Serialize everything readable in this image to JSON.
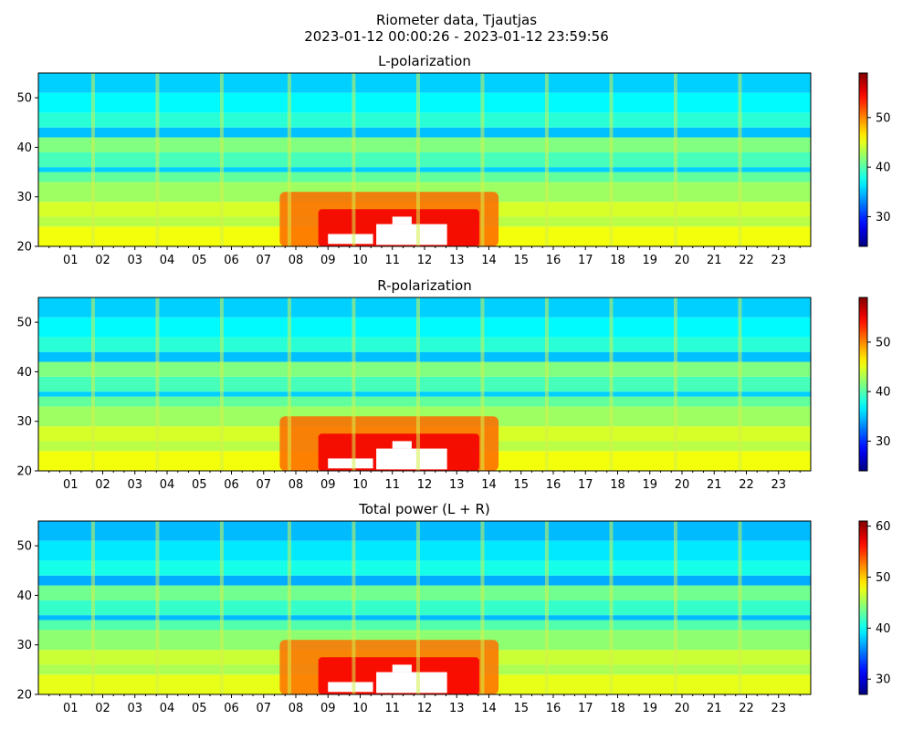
{
  "figure": {
    "title_line1": "Riometer data, Tjautjas",
    "title_line2": "2023-01-12 00:00:26 - 2023-01-12 23:59:56"
  },
  "chart_data": [
    {
      "type": "heatmap",
      "title": "L-polarization",
      "xlabel": "",
      "ylabel": "",
      "xlim": [
        0,
        24
      ],
      "ylim": [
        20,
        55
      ],
      "x_ticks": [
        "01",
        "02",
        "03",
        "04",
        "05",
        "06",
        "07",
        "08",
        "09",
        "10",
        "11",
        "12",
        "13",
        "14",
        "15",
        "16",
        "17",
        "18",
        "19",
        "20",
        "21",
        "22",
        "23"
      ],
      "y_ticks": [
        20,
        30,
        40,
        50
      ],
      "colormap": "jet",
      "colorbar": {
        "range": [
          24,
          59
        ],
        "ticks": [
          30,
          40,
          50
        ]
      },
      "interference_hours": [
        1.7,
        3.7,
        5.7,
        7.8,
        9.8,
        11.8,
        13.8,
        15.8,
        17.8,
        19.8,
        21.8
      ],
      "bands": [
        {
          "y0": 20,
          "y1": 24,
          "value": 45.5
        },
        {
          "y0": 24,
          "y1": 26,
          "value": 43.5
        },
        {
          "y0": 26,
          "y1": 29,
          "value": 44.5
        },
        {
          "y0": 29,
          "y1": 33,
          "value": 42.5
        },
        {
          "y0": 33,
          "y1": 35,
          "value": 40.5
        },
        {
          "y0": 35,
          "y1": 36,
          "value": 35.5
        },
        {
          "y0": 36,
          "y1": 39,
          "value": 39.5
        },
        {
          "y0": 39,
          "y1": 42,
          "value": 41.5
        },
        {
          "y0": 42,
          "y1": 44,
          "value": 35
        },
        {
          "y0": 44,
          "y1": 47,
          "value": 38.5
        },
        {
          "y0": 47,
          "y1": 51,
          "value": 37
        },
        {
          "y0": 51,
          "y1": 55,
          "value": 35.5
        }
      ],
      "enhancement": {
        "t0": 7.5,
        "t1": 14.3,
        "y0": 20,
        "y1": 31,
        "value": 51
      }
    },
    {
      "type": "heatmap",
      "title": "R-polarization",
      "xlabel": "",
      "ylabel": "",
      "xlim": [
        0,
        24
      ],
      "ylim": [
        20,
        55
      ],
      "x_ticks": [
        "01",
        "02",
        "03",
        "04",
        "05",
        "06",
        "07",
        "08",
        "09",
        "10",
        "11",
        "12",
        "13",
        "14",
        "15",
        "16",
        "17",
        "18",
        "19",
        "20",
        "21",
        "22",
        "23"
      ],
      "y_ticks": [
        20,
        30,
        40,
        50
      ],
      "colormap": "jet",
      "colorbar": {
        "range": [
          24,
          59
        ],
        "ticks": [
          30,
          40,
          50
        ]
      },
      "interference_hours": [
        1.7,
        3.7,
        5.7,
        7.8,
        9.8,
        11.8,
        13.8,
        15.8,
        17.8,
        19.8,
        21.8
      ],
      "bands": [
        {
          "y0": 20,
          "y1": 24,
          "value": 45.5
        },
        {
          "y0": 24,
          "y1": 26,
          "value": 43.5
        },
        {
          "y0": 26,
          "y1": 29,
          "value": 44.5
        },
        {
          "y0": 29,
          "y1": 33,
          "value": 42.5
        },
        {
          "y0": 33,
          "y1": 35,
          "value": 40.5
        },
        {
          "y0": 35,
          "y1": 36,
          "value": 35.5
        },
        {
          "y0": 36,
          "y1": 39,
          "value": 39.5
        },
        {
          "y0": 39,
          "y1": 42,
          "value": 41.5
        },
        {
          "y0": 42,
          "y1": 44,
          "value": 35
        },
        {
          "y0": 44,
          "y1": 47,
          "value": 38.5
        },
        {
          "y0": 47,
          "y1": 51,
          "value": 37
        },
        {
          "y0": 51,
          "y1": 55,
          "value": 35.5
        }
      ],
      "enhancement": {
        "t0": 7.5,
        "t1": 14.3,
        "y0": 20,
        "y1": 31,
        "value": 51
      }
    },
    {
      "type": "heatmap",
      "title": "Total power (L + R)",
      "xlabel": "",
      "ylabel": "",
      "xlim": [
        0,
        24
      ],
      "ylim": [
        20,
        55
      ],
      "x_ticks": [
        "01",
        "02",
        "03",
        "04",
        "05",
        "06",
        "07",
        "08",
        "09",
        "10",
        "11",
        "12",
        "13",
        "14",
        "15",
        "16",
        "17",
        "18",
        "19",
        "20",
        "21",
        "22",
        "23"
      ],
      "y_ticks": [
        20,
        30,
        40,
        50
      ],
      "colormap": "jet",
      "colorbar": {
        "range": [
          27,
          61
        ],
        "ticks": [
          30,
          40,
          50,
          60
        ]
      },
      "interference_hours": [
        1.7,
        3.7,
        5.7,
        7.8,
        9.8,
        11.8,
        13.8,
        15.8,
        17.8,
        19.8,
        21.8
      ],
      "bands": [
        {
          "y0": 20,
          "y1": 24,
          "value": 47.5
        },
        {
          "y0": 24,
          "y1": 26,
          "value": 45.5
        },
        {
          "y0": 26,
          "y1": 29,
          "value": 46.5
        },
        {
          "y0": 29,
          "y1": 33,
          "value": 44.5
        },
        {
          "y0": 33,
          "y1": 35,
          "value": 42.5
        },
        {
          "y0": 35,
          "y1": 36,
          "value": 37.5
        },
        {
          "y0": 36,
          "y1": 39,
          "value": 41.5
        },
        {
          "y0": 39,
          "y1": 42,
          "value": 43.5
        },
        {
          "y0": 42,
          "y1": 44,
          "value": 37
        },
        {
          "y0": 44,
          "y1": 47,
          "value": 40.5
        },
        {
          "y0": 47,
          "y1": 51,
          "value": 39
        },
        {
          "y0": 51,
          "y1": 55,
          "value": 37.5
        }
      ],
      "enhancement": {
        "t0": 7.5,
        "t1": 14.3,
        "y0": 20,
        "y1": 31,
        "value": 53
      }
    }
  ]
}
